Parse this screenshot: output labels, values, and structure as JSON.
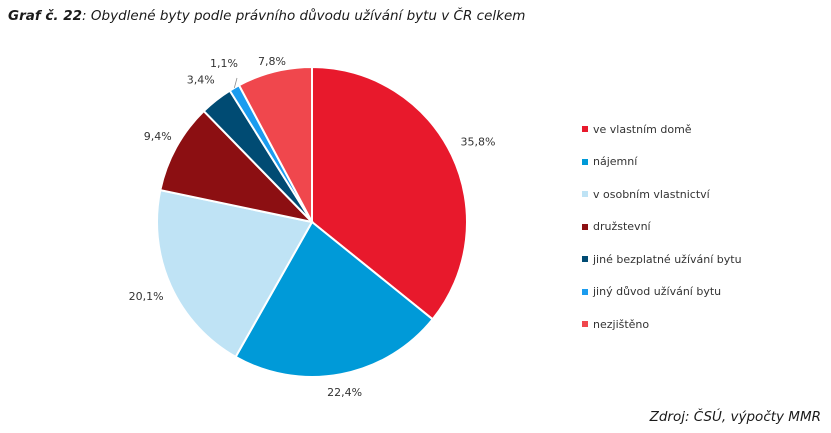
{
  "title": {
    "lead": "Graf č. 22",
    "text": ": Obydlené byty podle právního důvodu užívání bytu v ČR celkem"
  },
  "source": "Zdroj: ČSÚ, výpočty MMR",
  "chart_data": {
    "type": "pie",
    "legend_position": "right",
    "slices": [
      {
        "name": "ve vlastním domě",
        "value": 35.8,
        "label": "35,8%",
        "color": "#e8192c"
      },
      {
        "name": "nájemní",
        "value": 22.4,
        "label": "22,4%",
        "color": "#009ad8"
      },
      {
        "name": "v osobním vlastnictví",
        "value": 20.1,
        "label": "20,1%",
        "color": "#bfe3f5"
      },
      {
        "name": "družstevní",
        "value": 9.4,
        "label": "9,4%",
        "color": "#8c0f12"
      },
      {
        "name": "jiné bezplatné užívání bytu",
        "value": 3.4,
        "label": "3,4%",
        "color": "#004b73"
      },
      {
        "name": "jiný důvod užívání bytu",
        "value": 1.1,
        "label": "1,1%",
        "color": "#1b9cef"
      },
      {
        "name": "nezjištěno",
        "value": 7.8,
        "label": "7,8%",
        "color": "#f0474d"
      }
    ]
  }
}
